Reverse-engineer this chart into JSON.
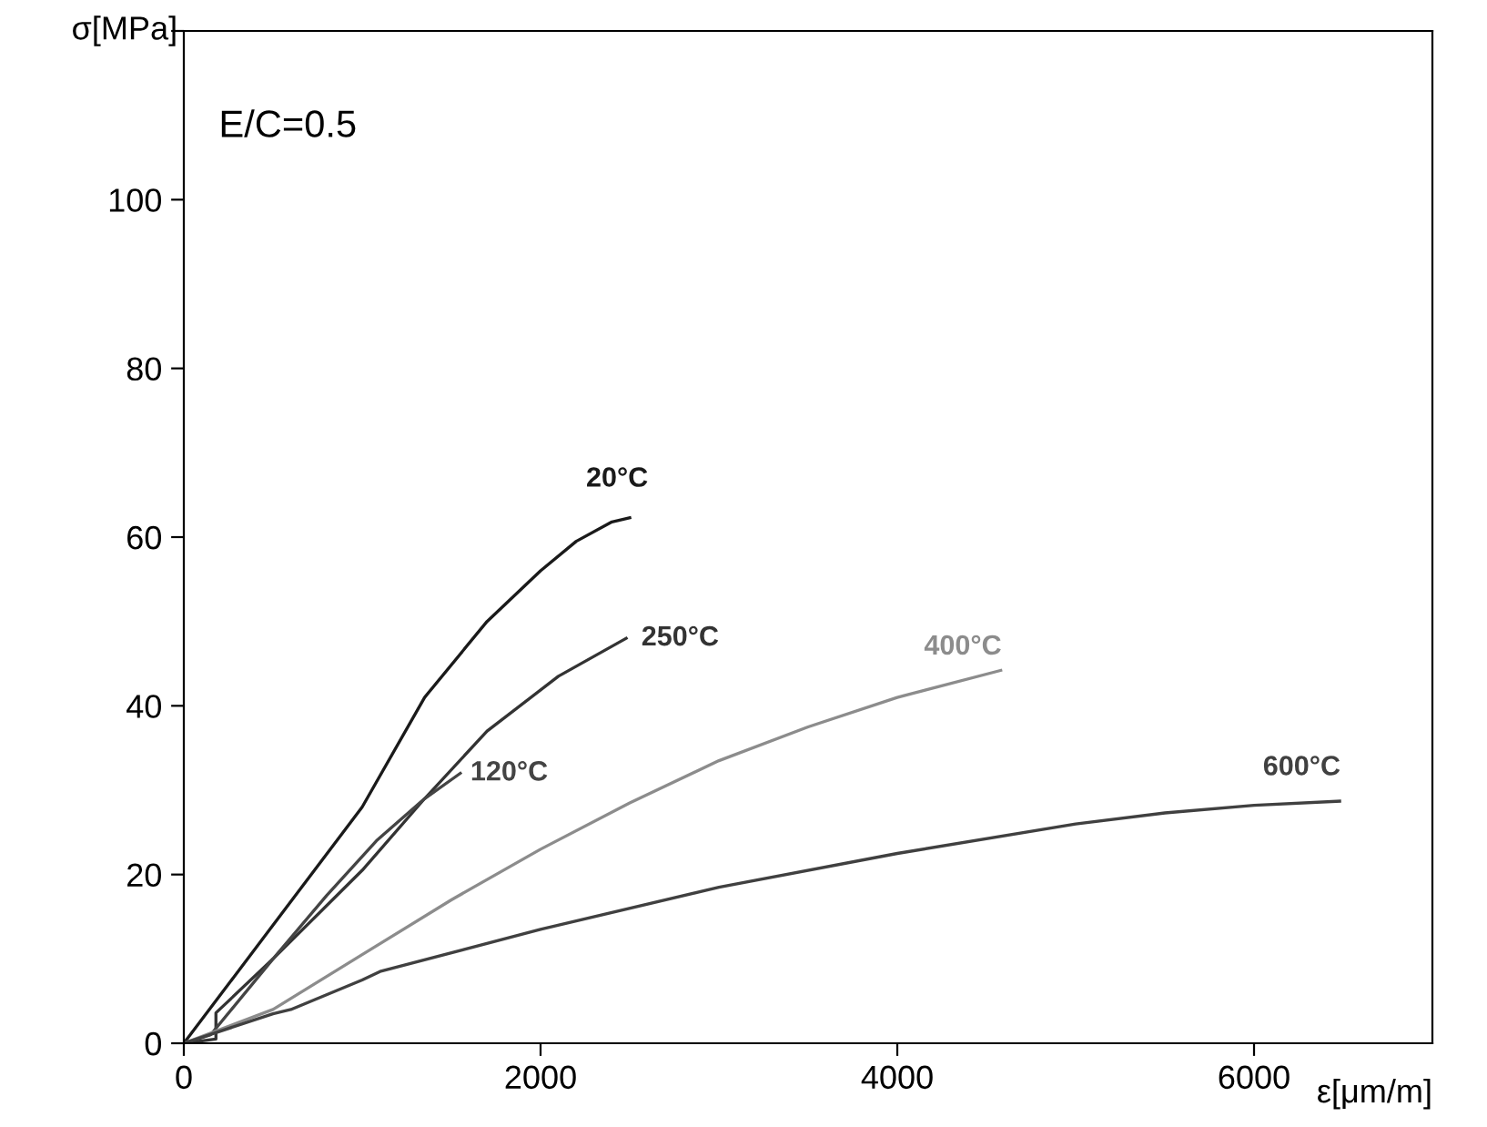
{
  "chart_data": {
    "type": "line",
    "xlabel": "ε[μm/m]",
    "ylabel": "σ[MPa]",
    "annotations": [
      "E/C=0.5"
    ],
    "xlim": [
      0,
      7000
    ],
    "ylim": [
      0,
      120
    ],
    "xticks": [
      0,
      2000,
      4000,
      6000
    ],
    "yticks": [
      0,
      20,
      40,
      60,
      80,
      100,
      {
        "value": 120,
        "label": null
      }
    ],
    "grid": false,
    "legend": false,
    "marker": "none",
    "line_style": "solid",
    "series": [
      {
        "name": "20°C",
        "color": "#1a1a1a",
        "x": [
          0,
          500,
          1000,
          1350,
          1700,
          2000,
          2200,
          2400,
          2500
        ],
        "values": [
          0,
          14,
          28,
          41,
          50,
          56,
          59.5,
          61.8,
          62.3
        ]
      },
      {
        "name": "250°C",
        "color": "#333333",
        "x": [
          0,
          180,
          180,
          500,
          1000,
          1350,
          1700,
          2100,
          2480
        ],
        "values": [
          0,
          0.5,
          3.6,
          10,
          20.5,
          29,
          37,
          43.5,
          48
        ]
      },
      {
        "name": "120°C",
        "color": "#444444",
        "x": [
          0,
          150,
          500,
          800,
          1080,
          1350,
          1550
        ],
        "values": [
          0,
          1,
          10,
          17.5,
          24,
          29,
          32
        ]
      },
      {
        "name": "400°C",
        "color": "#8c8c8c",
        "x": [
          0,
          500,
          1000,
          1500,
          2000,
          2500,
          3000,
          3500,
          4000,
          4580
        ],
        "values": [
          0,
          4,
          10.5,
          17,
          23,
          28.5,
          33.5,
          37.5,
          41,
          44.2
        ]
      },
      {
        "name": "600°C",
        "color": "#404040",
        "x": [
          0,
          500,
          600,
          1000,
          1100,
          2000,
          3000,
          4000,
          5000,
          5500,
          6000,
          6480
        ],
        "values": [
          0,
          3.5,
          4,
          7.5,
          8.5,
          13.5,
          18.5,
          22.5,
          26,
          27.3,
          28.2,
          28.7
        ]
      }
    ]
  }
}
